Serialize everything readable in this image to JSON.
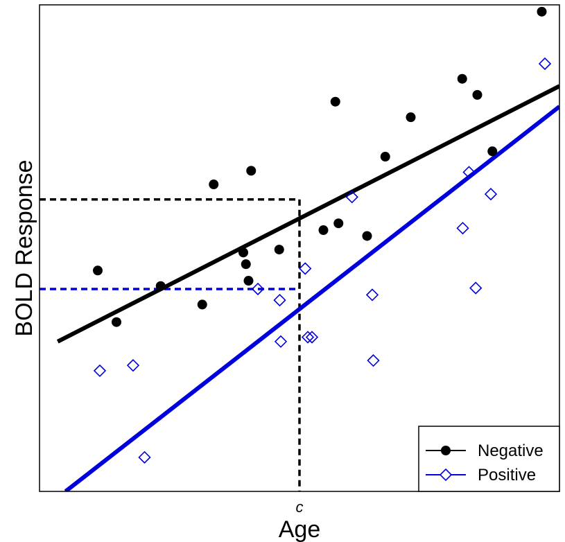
{
  "chart_data": {
    "type": "scatter",
    "xlabel": "Age",
    "ylabel": "BOLD Response",
    "x_ticks": [
      {
        "x": 50,
        "label": "c"
      }
    ],
    "xlim": [
      0,
      100
    ],
    "ylim": [
      0,
      100
    ],
    "grid": false,
    "legend_position": "bottom-right",
    "series": [
      {
        "name": "Negative",
        "color": "#000000",
        "marker": "filled-circle",
        "points": [
          [
            11.2,
            45.4
          ],
          [
            14.8,
            34.8
          ],
          [
            23.3,
            42.2
          ],
          [
            31.3,
            38.4
          ],
          [
            33.5,
            63.1
          ],
          [
            39.2,
            49.1
          ],
          [
            39.7,
            46.7
          ],
          [
            40.2,
            43.3
          ],
          [
            40.7,
            65.9
          ],
          [
            46.1,
            49.7
          ],
          [
            54.6,
            53.7
          ],
          [
            56.9,
            80.1
          ],
          [
            57.5,
            55.1
          ],
          [
            63.0,
            52.5
          ],
          [
            66.5,
            68.8
          ],
          [
            71.4,
            76.9
          ],
          [
            81.3,
            84.8
          ],
          [
            84.2,
            81.5
          ],
          [
            87.1,
            69.9
          ],
          [
            96.6,
            98.6
          ]
        ],
        "fit_line": [
          [
            3.5,
            30.8
          ],
          [
            100,
            83.3
          ]
        ],
        "reference_y": 60.0,
        "line_style": "solid"
      },
      {
        "name": "Positive",
        "color": "#0000dd",
        "marker": "open-diamond",
        "points": [
          [
            11.6,
            24.8
          ],
          [
            18.0,
            25.9
          ],
          [
            20.2,
            7.0
          ],
          [
            42.0,
            41.6
          ],
          [
            46.2,
            39.3
          ],
          [
            46.4,
            30.8
          ],
          [
            51.1,
            45.8
          ],
          [
            51.6,
            31.7
          ],
          [
            52.4,
            31.7
          ],
          [
            60.1,
            60.5
          ],
          [
            64.0,
            40.4
          ],
          [
            64.2,
            26.9
          ],
          [
            81.4,
            54.1
          ],
          [
            82.6,
            65.6
          ],
          [
            83.9,
            41.8
          ],
          [
            86.8,
            61.1
          ],
          [
            97.2,
            87.9
          ]
        ],
        "fit_line": [
          [
            5.0,
            0
          ],
          [
            100,
            79.1
          ]
        ],
        "reference_y": 41.6,
        "line_style": "solid"
      }
    ],
    "cutoff_x": 50,
    "legend": [
      {
        "label": "Negative",
        "series": 0
      },
      {
        "label": "Positive",
        "series": 1
      }
    ]
  }
}
